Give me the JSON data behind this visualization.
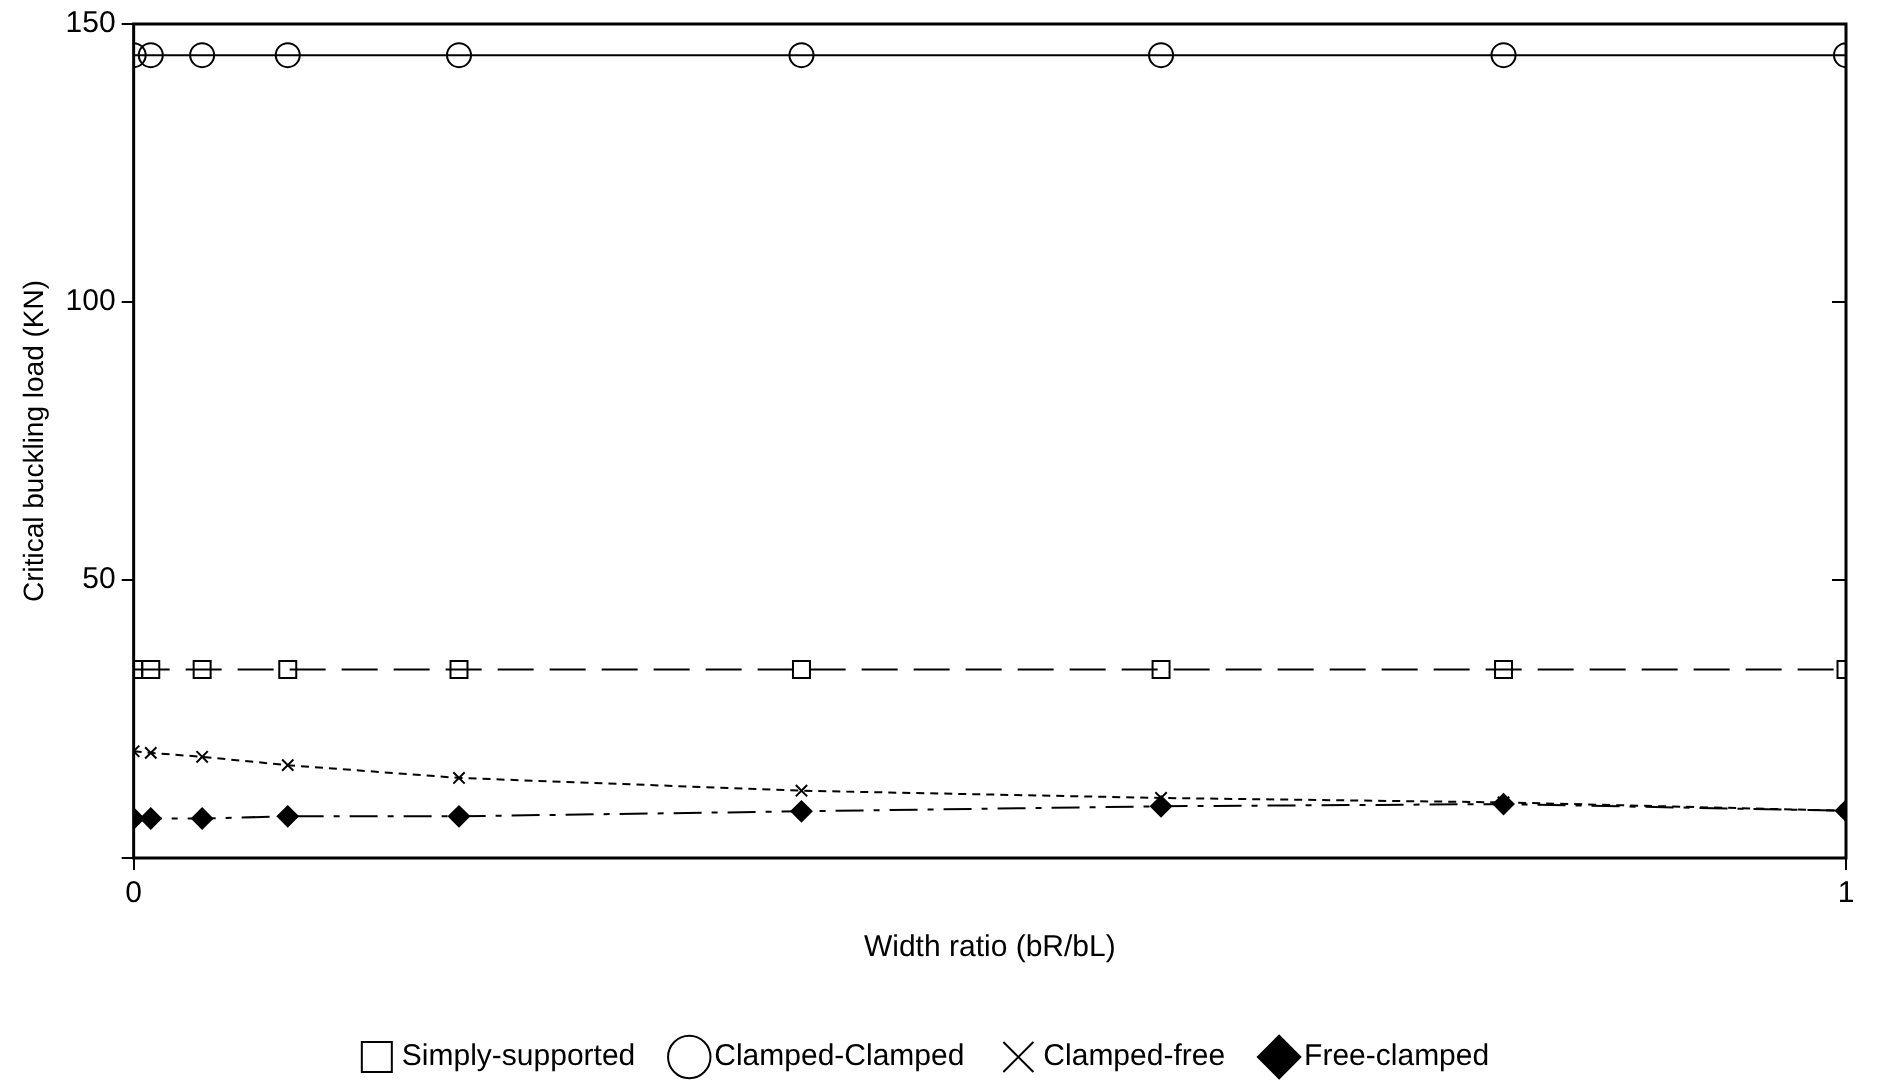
{
  "chart_data": {
    "type": "line",
    "xlabel": "Width ratio (bR/bL)",
    "ylabel": "Critical buckling load (KN)",
    "x": [
      0,
      0.01,
      0.04,
      0.09,
      0.19,
      0.39,
      0.6,
      0.8,
      1
    ],
    "xlim": [
      0,
      1
    ],
    "xticks": [
      0,
      1
    ],
    "ylim": [
      0,
      150
    ],
    "yticks": [
      {
        "value": 0,
        "label": null
      },
      50,
      100,
      150
    ],
    "grid": false,
    "legend": "bottom",
    "series": [
      {
        "name": "Simply-supported",
        "color": "#000000",
        "marker": "square",
        "line_style": "dashed",
        "values": [
          33.9,
          33.9,
          33.9,
          33.9,
          33.9,
          33.9,
          33.9,
          33.9,
          33.9
        ]
      },
      {
        "name": "Clamped-Clamped",
        "color": "#000000",
        "marker": "circle",
        "line_style": "solid",
        "values": [
          144.4,
          144.4,
          144.4,
          144.4,
          144.4,
          144.4,
          144.4,
          144.4,
          144.4
        ]
      },
      {
        "name": "Clamped-free",
        "color": "#000000",
        "marker": "cross",
        "line_style": "dotted",
        "values": [
          19.2,
          18.9,
          18.2,
          16.7,
          14.4,
          12.1,
          10.8,
          10.0,
          8.5
        ]
      },
      {
        "name": "Free-clamped",
        "color": "#000000",
        "marker": "diamond",
        "line_style": "dashdot",
        "values": [
          7.1,
          7.1,
          7.1,
          7.5,
          7.5,
          8.4,
          9.3,
          9.7,
          8.5
        ]
      }
    ]
  }
}
